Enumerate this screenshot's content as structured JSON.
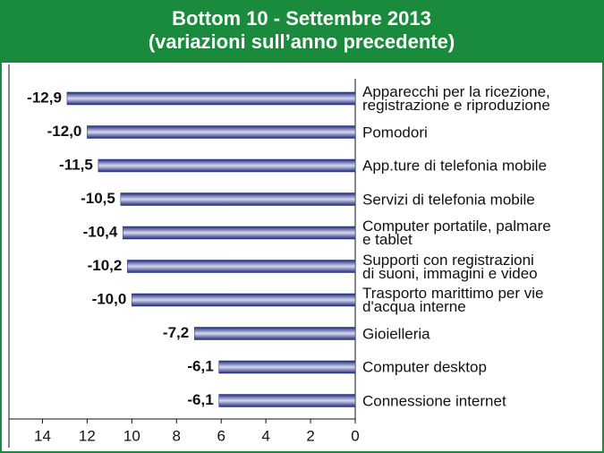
{
  "chart_data": {
    "type": "bar",
    "orientation": "horizontal",
    "title": "Bottom 10 - Settembre 2013",
    "subtitle": "(variazioni sull’anno precedente)",
    "categories": [
      "Apparecchi per la ricezione,\nregistrazione e riproduzione",
      "Pomodori",
      "App.ture di telefonia mobile",
      "Servizi di telefonia mobile",
      "Computer portatile, palmare\ne tablet",
      "Supporti con registrazioni\ndi suoni, immagini e video",
      "Trasporto marittimo per vie\nd'acqua interne",
      "Gioielleria",
      "Computer desktop",
      "Connessione internet"
    ],
    "values": [
      -12.9,
      -12.0,
      -11.5,
      -10.5,
      -10.4,
      -10.2,
      -10.0,
      -7.2,
      -6.1,
      -6.1
    ],
    "value_labels": [
      "-12,9",
      "-12,0",
      "-11,5",
      "-10,5",
      "-10,4",
      "-10,2",
      "-10,0",
      "-7,2",
      "-6,1",
      "-6,1"
    ],
    "color": "#1f2b7d",
    "xlim": [
      -15.5,
      0
    ],
    "xticks": [
      {
        "value": -14,
        "label": "14"
      },
      {
        "value": -12,
        "label": "12"
      },
      {
        "value": -10,
        "label": "10"
      },
      {
        "value": -8,
        "label": "8"
      },
      {
        "value": -6,
        "label": "6"
      },
      {
        "value": -4,
        "label": "4"
      },
      {
        "value": -2,
        "label": "2"
      },
      0
    ]
  }
}
